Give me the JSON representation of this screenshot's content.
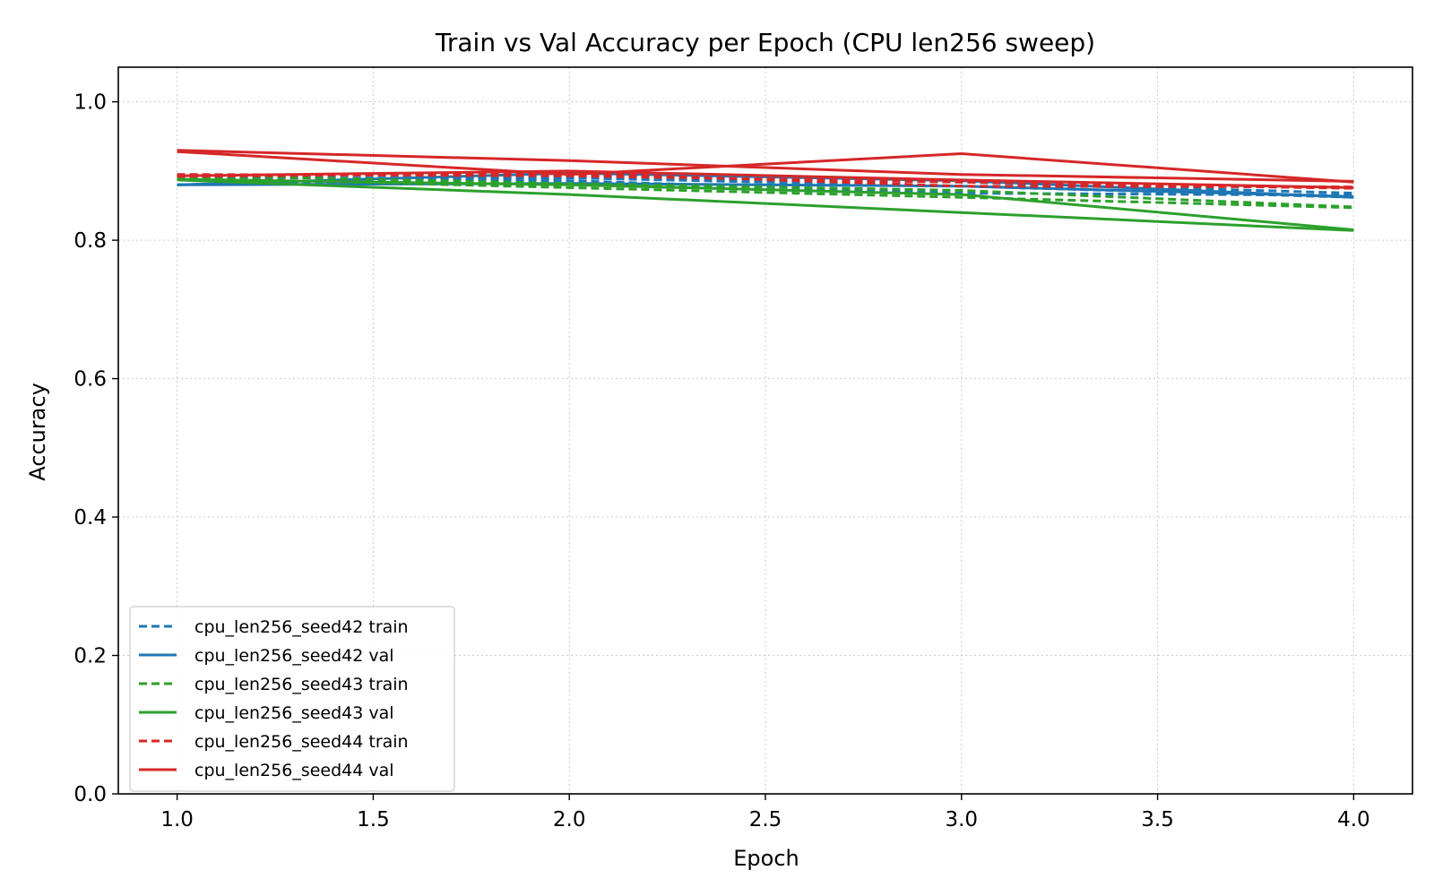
{
  "chart_data": {
    "type": "line",
    "title": "Train vs Val Accuracy per Epoch (CPU len256 sweep)",
    "xlabel": "Epoch",
    "ylabel": "Accuracy",
    "xlim": [
      0.85,
      4.15
    ],
    "ylim": [
      0.0,
      1.05
    ],
    "xticks": [
      1.0,
      1.5,
      2.0,
      2.5,
      3.0,
      3.5,
      4.0
    ],
    "xtick_labels": [
      "1.0",
      "1.5",
      "2.0",
      "2.5",
      "3.0",
      "3.5",
      "4.0"
    ],
    "yticks": [
      0.0,
      0.2,
      0.4,
      0.6,
      0.8,
      1.0
    ],
    "ytick_labels": [
      "0.0",
      "0.2",
      "0.4",
      "0.6",
      "0.8",
      "1.0"
    ],
    "grid": true,
    "legend_position": "lower-left",
    "colors": {
      "seed42": "#1f77b4",
      "seed43": "#2ca02c",
      "seed44": "#d62728"
    },
    "series": [
      {
        "name": "cpu_len256_seed42 train",
        "color": "#1f77b4",
        "style": "dashed",
        "runs": [
          {
            "x": [
              1,
              2,
              3,
              4
            ],
            "y": [
              0.89,
              0.89,
              0.878,
              0.862
            ]
          },
          {
            "x": [
              1,
              2,
              3,
              4
            ],
            "y": [
              0.892,
              0.886,
              0.868,
              0.865
            ]
          },
          {
            "x": [
              1,
              2,
              3,
              4
            ],
            "y": [
              0.88,
              0.892,
              0.884,
              0.868
            ]
          }
        ]
      },
      {
        "name": "cpu_len256_seed42 val",
        "color": "#1f77b4",
        "style": "solid",
        "runs": [
          {
            "x": [
              1,
              2,
              3,
              4
            ],
            "y": [
              0.88,
              0.882,
              0.878,
              0.863
            ]
          },
          {
            "x": [
              1,
              2,
              3,
              4
            ],
            "y": [
              0.88,
              0.897,
              0.886,
              0.862
            ]
          }
        ]
      },
      {
        "name": "cpu_len256_seed43 train",
        "color": "#2ca02c",
        "style": "dashed",
        "runs": [
          {
            "x": [
              1,
              2,
              3,
              4
            ],
            "y": [
              0.894,
              0.882,
              0.872,
              0.848
            ]
          },
          {
            "x": [
              1,
              2,
              3,
              4
            ],
            "y": [
              0.89,
              0.876,
              0.862,
              0.847
            ]
          }
        ]
      },
      {
        "name": "cpu_len256_seed43 val",
        "color": "#2ca02c",
        "style": "solid",
        "runs": [
          {
            "x": [
              1,
              2,
              3,
              4
            ],
            "y": [
              0.888,
              0.88,
              0.866,
              0.815
            ]
          },
          {
            "x": [
              1,
              2,
              3,
              4
            ],
            "y": [
              0.887,
              0.866,
              0.84,
              0.814
            ]
          }
        ]
      },
      {
        "name": "cpu_len256_seed44 train",
        "color": "#d62728",
        "style": "dashed",
        "runs": [
          {
            "x": [
              1,
              2,
              3,
              4
            ],
            "y": [
              0.895,
              0.893,
              0.884,
              0.875
            ]
          },
          {
            "x": [
              1,
              2,
              3,
              4
            ],
            "y": [
              0.892,
              0.897,
              0.878,
              0.877
            ]
          }
        ]
      },
      {
        "name": "cpu_len256_seed44 val",
        "color": "#d62728",
        "style": "solid",
        "runs": [
          {
            "x": [
              1,
              2,
              3,
              4
            ],
            "y": [
              0.93,
              0.915,
              0.895,
              0.885
            ]
          },
          {
            "x": [
              1,
              2,
              3,
              4
            ],
            "y": [
              0.928,
              0.895,
              0.925,
              0.884
            ]
          },
          {
            "x": [
              1,
              2,
              3,
              4
            ],
            "y": [
              0.893,
              0.9,
              0.887,
              0.876
            ]
          }
        ]
      }
    ]
  }
}
